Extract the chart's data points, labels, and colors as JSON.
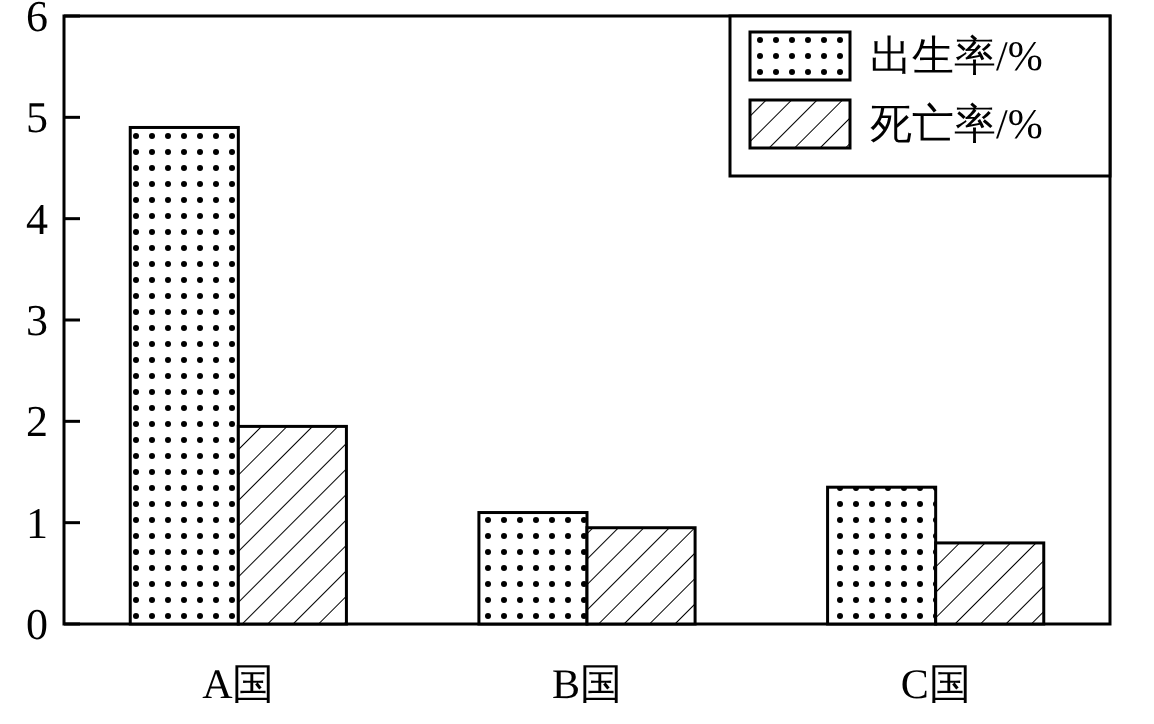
{
  "chart_data": {
    "type": "bar",
    "categories": [
      "A国",
      "B国",
      "C国"
    ],
    "series": [
      {
        "name": "出生率/%",
        "color": "#000000",
        "values": [
          4.9,
          1.1,
          1.35
        ]
      },
      {
        "name": "死亡率/%",
        "color": "#000000",
        "values": [
          1.95,
          0.95,
          0.8
        ]
      }
    ],
    "ylim": [
      0,
      6
    ],
    "yticks": [
      0,
      1,
      2,
      3,
      4,
      5,
      6
    ],
    "grid": false,
    "legend": "top right"
  }
}
